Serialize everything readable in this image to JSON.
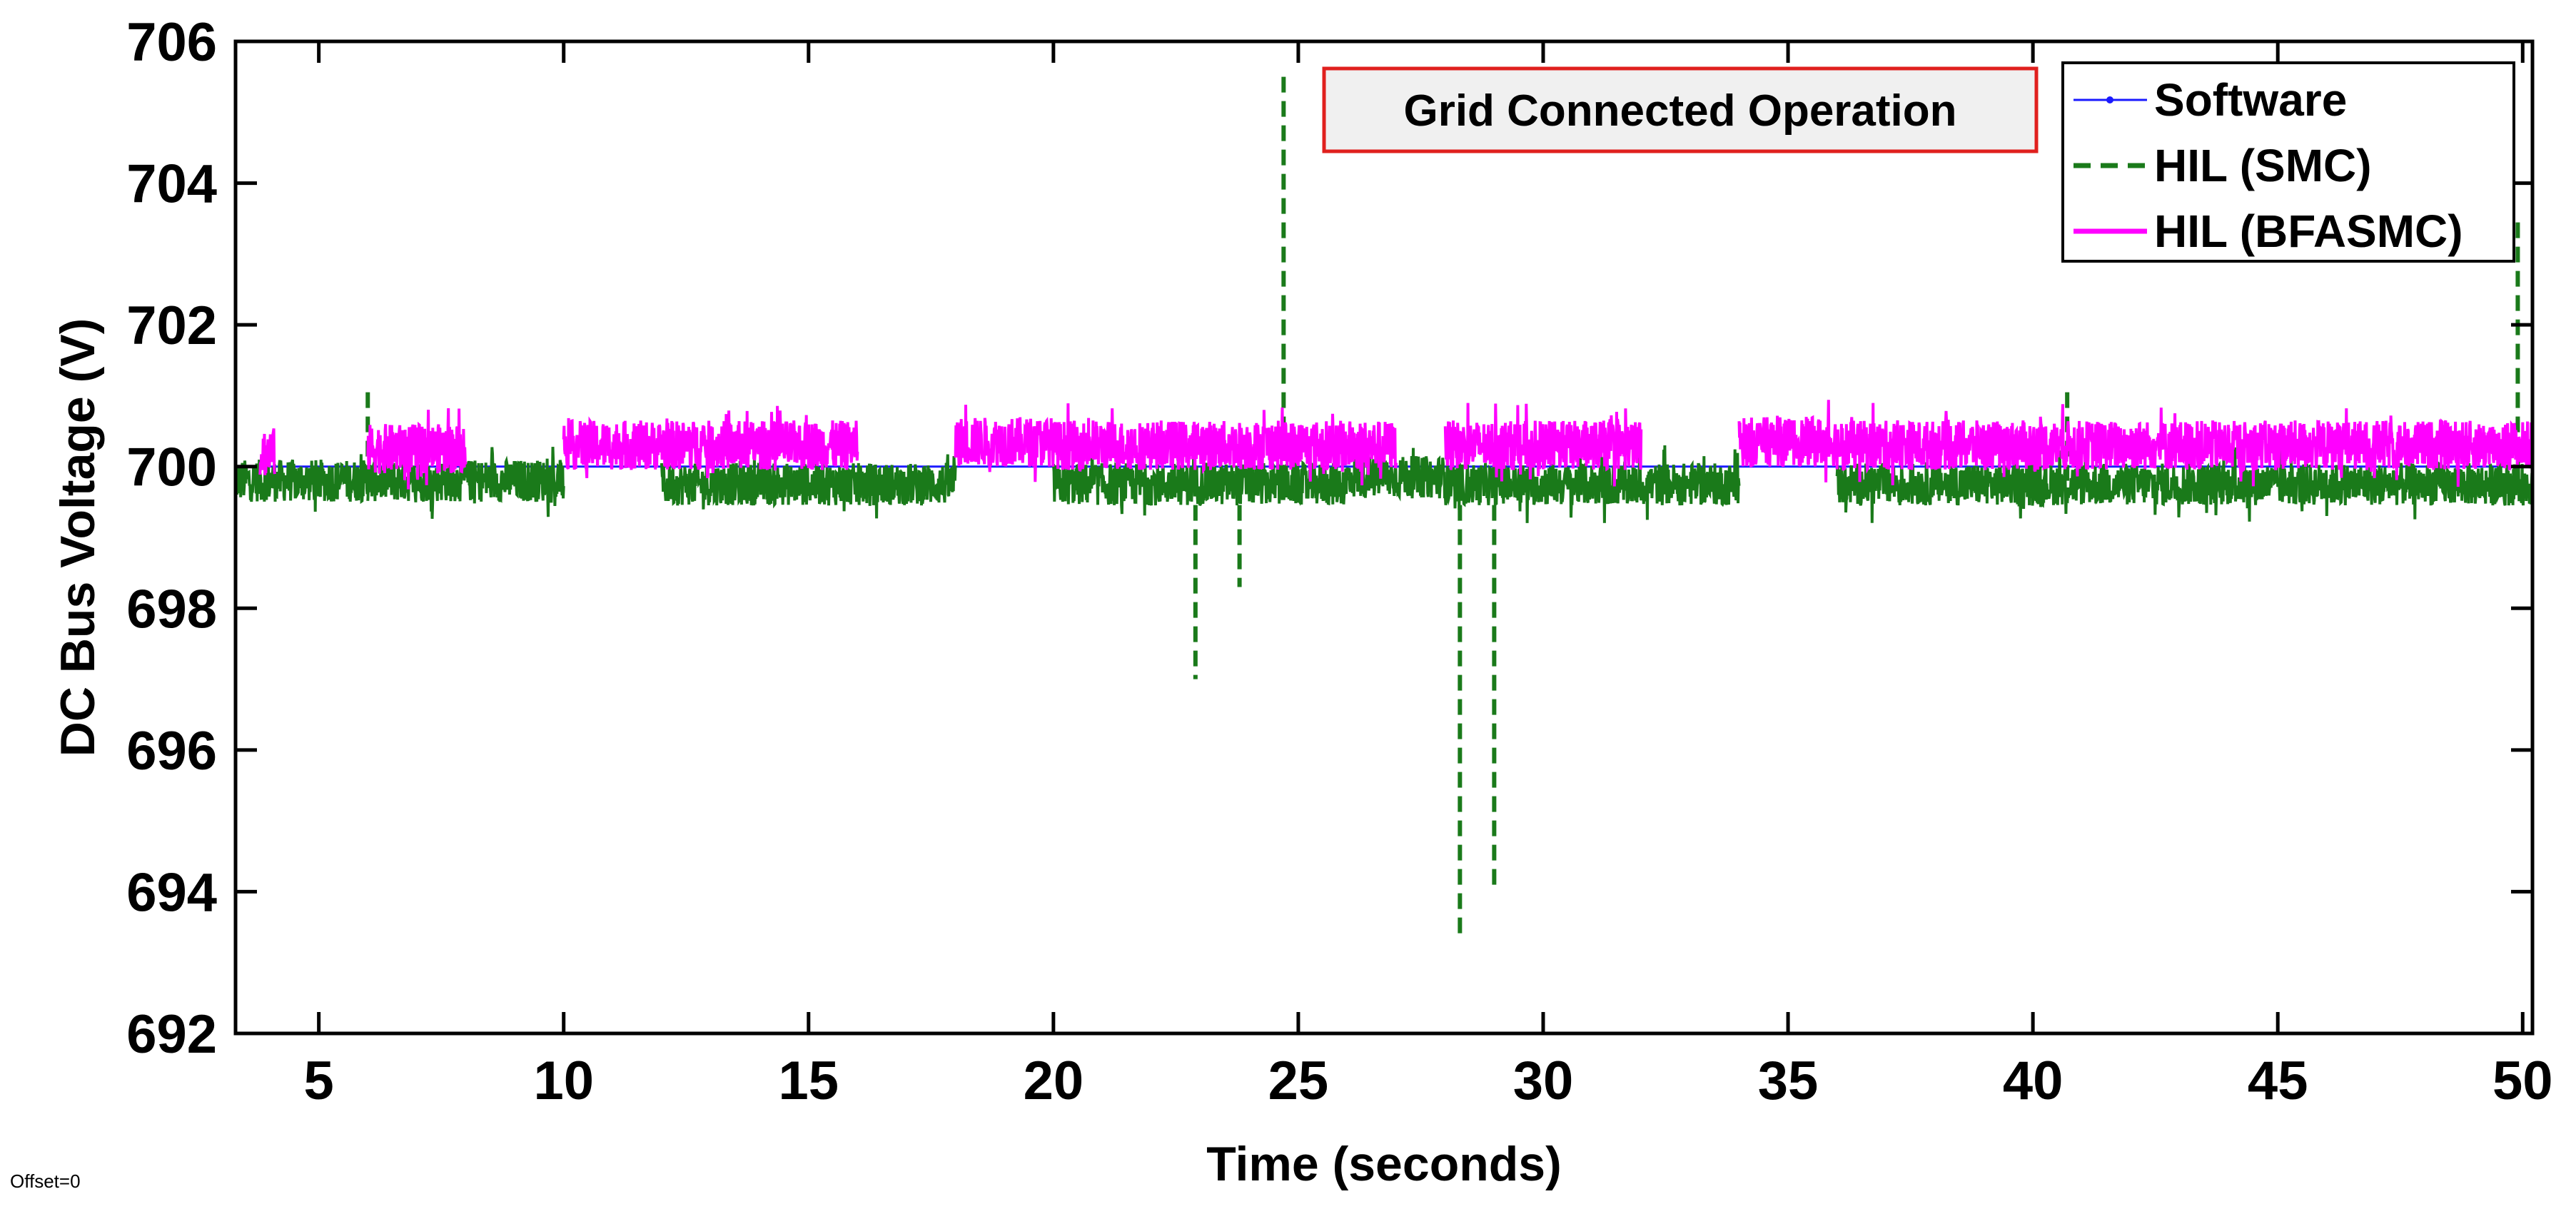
{
  "chart_data": {
    "type": "line",
    "title": "",
    "xlabel": "Time (seconds)",
    "ylabel": "DC Bus Voltage (V)",
    "xlim": [
      3.3,
      50.2
    ],
    "ylim": [
      692,
      706
    ],
    "xticks": [
      5,
      10,
      15,
      20,
      25,
      30,
      35,
      40,
      45,
      50
    ],
    "yticks": [
      692,
      694,
      696,
      698,
      700,
      702,
      704,
      706
    ],
    "grid": false,
    "legend_position": "top-right",
    "annotation": "Grid Connected Operation",
    "footer_note": "Offset=0",
    "series": [
      {
        "name": "Software",
        "style": "solid-with-markers",
        "color": "#1a1aff",
        "nominal": 700.0,
        "x": [
          3.3,
          50.2
        ],
        "y": [
          700.0,
          700.0
        ]
      },
      {
        "name": "HIL (SMC)",
        "style": "dashed",
        "color": "#1a7a1a",
        "band_center": 699.8,
        "band_halfwidth": 0.3,
        "segments": [
          {
            "x0": 3.3,
            "x1": 6.0,
            "center": 699.8
          },
          {
            "x0": 6.0,
            "x1": 10.0,
            "center": 699.8
          },
          {
            "x0": 12.0,
            "x1": 18.0,
            "center": 699.75
          },
          {
            "x0": 20.0,
            "x1": 26.0,
            "center": 699.75
          },
          {
            "x0": 26.0,
            "x1": 28.0,
            "center": 699.85
          },
          {
            "x0": 28.0,
            "x1": 34.0,
            "center": 699.75
          },
          {
            "x0": 36.0,
            "x1": 44.0,
            "center": 699.75
          },
          {
            "x0": 44.0,
            "x1": 50.2,
            "center": 699.75
          }
        ],
        "spikes": [
          {
            "x": 22.9,
            "y": 697.0
          },
          {
            "x": 23.8,
            "y": 698.3
          },
          {
            "x": 24.7,
            "y": 705.5
          },
          {
            "x": 28.3,
            "y": 693.4
          },
          {
            "x": 29.0,
            "y": 694.0
          },
          {
            "x": 49.9,
            "y": 703.5
          },
          {
            "x": 6.0,
            "y": 701.1
          },
          {
            "x": 40.7,
            "y": 701.1
          }
        ]
      },
      {
        "name": "HIL (BFASMC)",
        "style": "solid",
        "color": "#ff00ff",
        "band_center": 700.3,
        "band_halfwidth": 0.35,
        "segments": [
          {
            "x0": 3.8,
            "x1": 4.1,
            "center": 700.2
          },
          {
            "x0": 6.0,
            "x1": 8.0,
            "center": 700.25
          },
          {
            "x0": 10.0,
            "x1": 12.0,
            "center": 700.3
          },
          {
            "x0": 12.0,
            "x1": 16.0,
            "center": 700.3
          },
          {
            "x0": 18.0,
            "x1": 20.0,
            "center": 700.35
          },
          {
            "x0": 20.0,
            "x1": 26.0,
            "center": 700.3
          },
          {
            "x0": 26.0,
            "x1": 27.0,
            "center": 700.3
          },
          {
            "x0": 28.0,
            "x1": 32.0,
            "center": 700.3
          },
          {
            "x0": 34.0,
            "x1": 36.0,
            "center": 700.35
          },
          {
            "x0": 36.0,
            "x1": 42.0,
            "center": 700.3
          },
          {
            "x0": 42.0,
            "x1": 44.0,
            "center": 700.3
          },
          {
            "x0": 44.0,
            "x1": 50.2,
            "center": 700.3
          }
        ]
      }
    ]
  }
}
